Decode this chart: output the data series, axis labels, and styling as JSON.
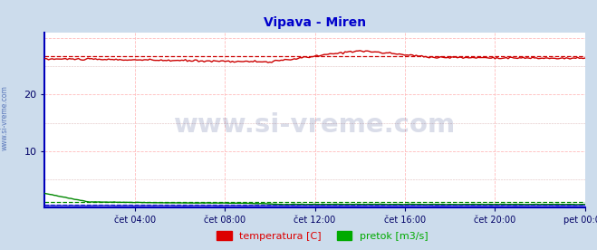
{
  "title": "Vipava - Miren",
  "title_color": "#0000cc",
  "title_fontsize": 10,
  "bg_color": "#ccdcec",
  "plot_bg_color": "#ffffff",
  "border_color": "#0000bb",
  "yticks": [
    10,
    20
  ],
  "ylim": [
    0,
    31
  ],
  "xlim_start": 0,
  "xlim_end": 288,
  "xtick_labels": [
    "čet 04:00",
    "čet 08:00",
    "čet 12:00",
    "čet 16:00",
    "čet 20:00",
    "pet 00:00"
  ],
  "xtick_positions": [
    48,
    96,
    144,
    192,
    240,
    288
  ],
  "grid_color": "#ffbbbb",
  "grid_color2": "#ddbbbb",
  "watermark_text": "www.si-vreme.com",
  "watermark_color": "#334488",
  "watermark_alpha": 0.18,
  "legend_labels": [
    "temperatura [C]",
    "pretok [m3/s]"
  ],
  "legend_colors": [
    "#dd0000",
    "#00aa00"
  ],
  "temp_color": "#cc0000",
  "flow_color": "#008800",
  "height_color": "#0000cc",
  "temp_avg": 26.8,
  "flow_avg": 0.9,
  "height_avg": 0.5,
  "tick_color": "#000066",
  "side_text": "www.si-vreme.com",
  "side_text_color": "#3355aa"
}
